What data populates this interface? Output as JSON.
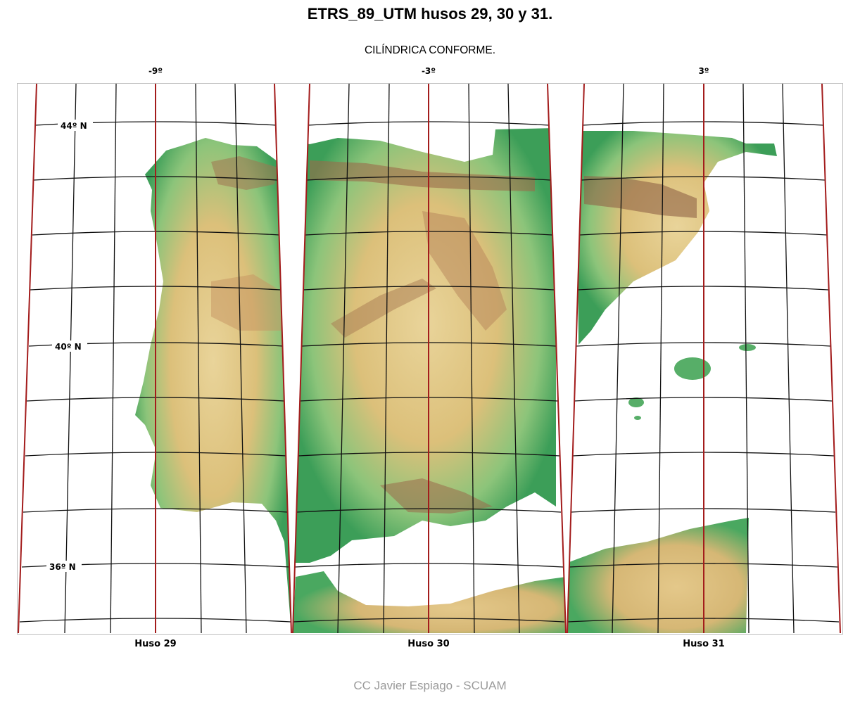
{
  "title": "ETRS_89_UTM husos 29, 30 y 31.",
  "subtitle": "CILÍNDRICA CONFORME.",
  "meridians": [
    {
      "label": "-9º",
      "longitude": -9
    },
    {
      "label": "-3º",
      "longitude": -3
    },
    {
      "label": "3º",
      "longitude": 3
    }
  ],
  "latitudes": [
    {
      "label": "44º N",
      "latitude": 44
    },
    {
      "label": "40º N",
      "latitude": 40
    },
    {
      "label": "36º N",
      "latitude": 36
    }
  ],
  "zones": [
    {
      "label": "Huso 29",
      "number": 29
    },
    {
      "label": "Huso 30",
      "number": 30
    },
    {
      "label": "Huso 31",
      "number": 31
    }
  ],
  "credit": "CC Javier Espiago - SCUAM",
  "colors": {
    "zone_boundary": "#b22222",
    "central_meridian": "#a31c1c",
    "graticule": "#111111",
    "lowland": "#3fa35a",
    "midland": "#e8cc7a",
    "highland": "#c78a4a",
    "mountain": "#9b6a4a",
    "sea": "#ffffff"
  }
}
